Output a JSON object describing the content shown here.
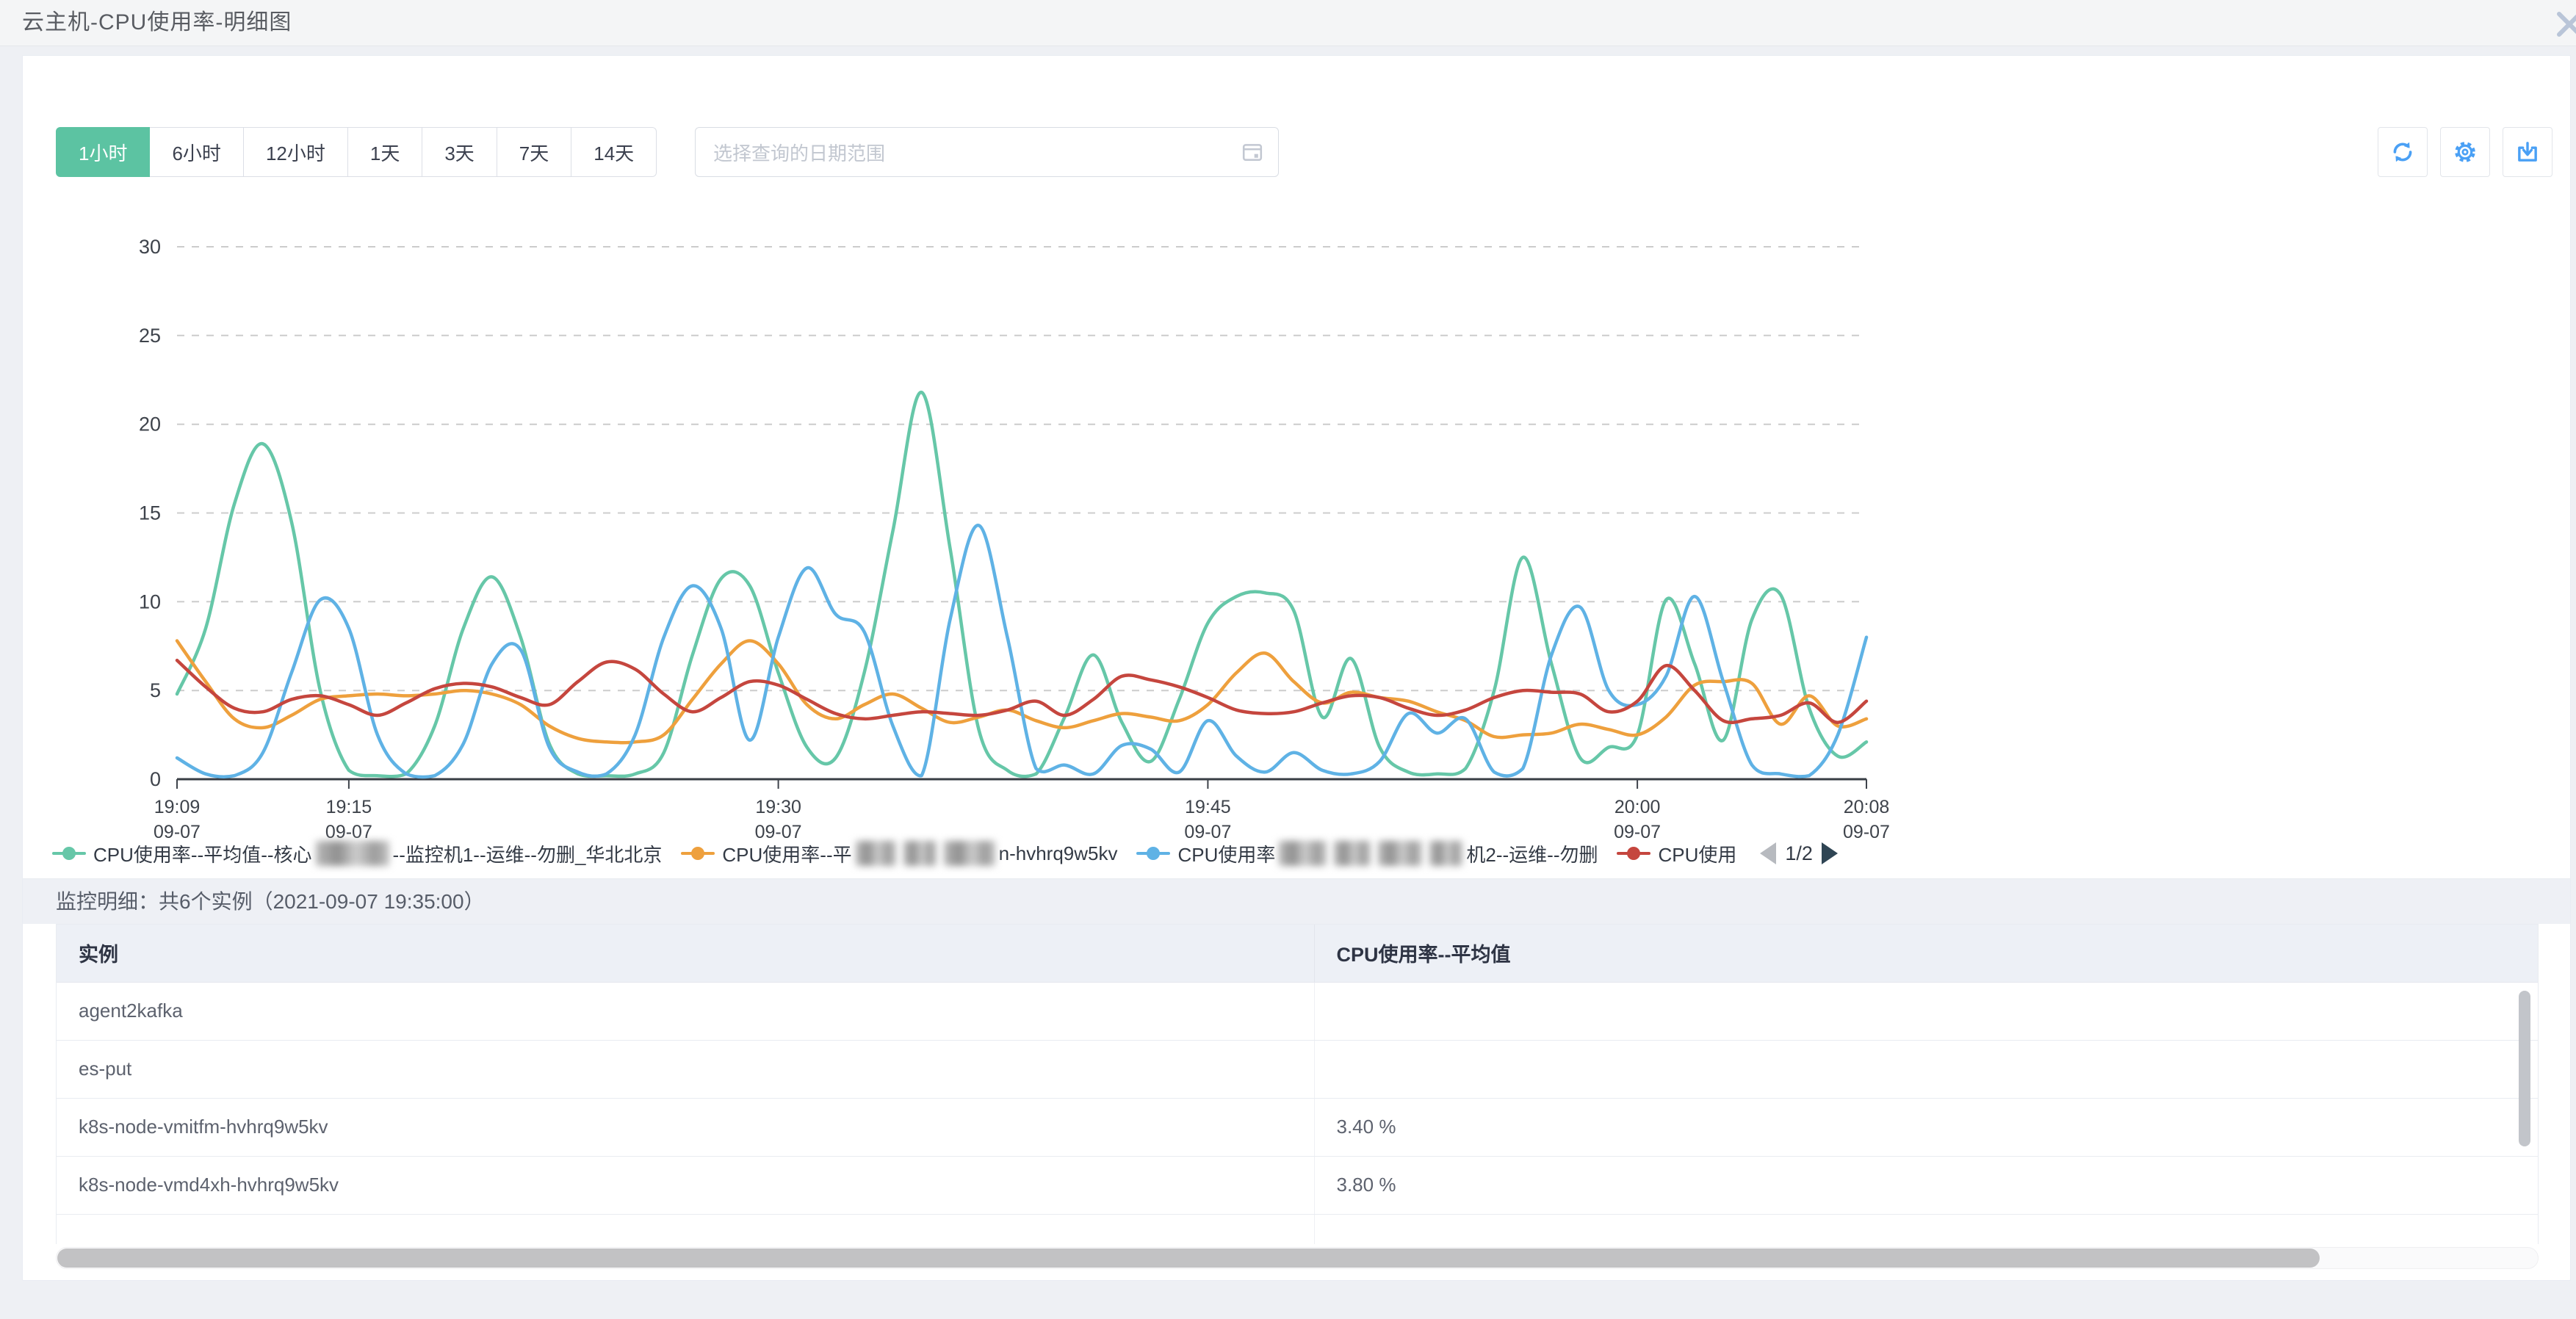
{
  "window": {
    "title": "云主机-CPU使用率-明细图"
  },
  "toolbar": {
    "time_ranges": [
      {
        "key": "1h",
        "label": "1小时",
        "active": true
      },
      {
        "key": "6h",
        "label": "6小时",
        "active": false
      },
      {
        "key": "12h",
        "label": "12小时",
        "active": false
      },
      {
        "key": "1d",
        "label": "1天",
        "active": false
      },
      {
        "key": "3d",
        "label": "3天",
        "active": false
      },
      {
        "key": "7d",
        "label": "7天",
        "active": false
      },
      {
        "key": "14d",
        "label": "14天",
        "active": false
      }
    ],
    "date_picker": {
      "placeholder": "选择查询的日期范围"
    },
    "accent_color": "#4aa0f5"
  },
  "chart_data": {
    "type": "line",
    "title": "",
    "xlabel": "",
    "ylabel": "",
    "value_unit": "%",
    "ylim": [
      0,
      30
    ],
    "y_ticks": [
      0,
      5,
      10,
      15,
      20,
      25,
      30
    ],
    "grid": "dashed-horizontal",
    "legend_position": "bottom",
    "x_start_minute": 0,
    "x_end_minute": 59,
    "x_ticks": [
      {
        "minute": 0,
        "time": "19:09",
        "date": "09-07"
      },
      {
        "minute": 6,
        "time": "19:15",
        "date": "09-07"
      },
      {
        "minute": 21,
        "time": "19:30",
        "date": "09-07"
      },
      {
        "minute": 36,
        "time": "19:45",
        "date": "09-07"
      },
      {
        "minute": 51,
        "time": "20:00",
        "date": "09-07"
      },
      {
        "minute": 59,
        "time": "20:08",
        "date": "09-07"
      }
    ],
    "series": [
      {
        "key": "core-monitor1",
        "color": "#66C7A8",
        "name_segments": [
          {
            "text": "CPU使用率--平均值--核心"
          },
          {
            "blur": 100
          },
          {
            "text": "--监控机1--运维--勿删_华北北京"
          }
        ],
        "values": [
          4.8,
          8.5,
          15.5,
          18.9,
          14.5,
          5,
          0.5,
          0.2,
          0.3,
          3,
          8.5,
          11.4,
          8,
          2,
          0.3,
          0.2,
          0.3,
          1.5,
          7,
          11.3,
          10.9,
          6,
          1.8,
          1.2,
          6,
          14,
          21.8,
          13,
          2.8,
          0.5,
          0.3,
          3.5,
          7,
          3.2,
          1,
          4.5,
          8.8,
          10.3,
          10.5,
          9.5,
          3.5,
          6.8,
          1.8,
          0.4,
          0.3,
          0.6,
          5,
          12.5,
          6.5,
          1.2,
          1.8,
          2.5,
          10.1,
          6.5,
          2.2,
          9,
          10.4,
          4,
          1.3,
          2.1
        ]
      },
      {
        "key": "node-hvhrq9w5kv",
        "color": "#EEA03D",
        "name_segments": [
          {
            "text": "CPU使用率--平"
          },
          {
            "blur": 55
          },
          {
            "blur": 45
          },
          {
            "blur": 70
          },
          {
            "text": "n-hvhrq9w5kv"
          }
        ],
        "values": [
          7.8,
          5.5,
          3.4,
          2.9,
          3.6,
          4.5,
          4.7,
          4.8,
          4.7,
          4.8,
          5,
          4.8,
          4.2,
          3,
          2.3,
          2.1,
          2.1,
          2.5,
          4.5,
          6.5,
          7.8,
          6.5,
          4.2,
          3.4,
          4.2,
          4.8,
          4,
          3.2,
          3.5,
          3.9,
          3.3,
          2.9,
          3.3,
          3.7,
          3.5,
          3.3,
          4.2,
          6,
          7.1,
          5.5,
          4.3,
          4.9,
          4.6,
          4.4,
          3.8,
          3.3,
          2.4,
          2.5,
          2.6,
          3.1,
          2.8,
          2.5,
          3.5,
          5.3,
          5.5,
          5.4,
          3.1,
          4.7,
          3,
          3.4
        ]
      },
      {
        "key": "machine2",
        "color": "#5FB2E5",
        "name_segments": [
          {
            "text": "CPU使用率"
          },
          {
            "blur": 65
          },
          {
            "blur": 50
          },
          {
            "blur": 60
          },
          {
            "blur": 45
          },
          {
            "text": "机2--运维--勿删"
          }
        ],
        "values": [
          1.2,
          0.3,
          0.2,
          1.5,
          6,
          10.1,
          8.5,
          2.5,
          0.3,
          0.2,
          2,
          6.5,
          7.3,
          1.8,
          0.4,
          0.3,
          2.5,
          8,
          10.9,
          8.5,
          2.2,
          8,
          11.9,
          9.3,
          8.3,
          3,
          0.2,
          9,
          14.3,
          8,
          0.6,
          0.8,
          0.3,
          1.9,
          1.7,
          0.4,
          3.3,
          1.3,
          0.4,
          1.5,
          0.5,
          0.3,
          1,
          3.7,
          2.6,
          3.4,
          0.4,
          0.6,
          7,
          9.7,
          5,
          4.2,
          5.8,
          10.3,
          5.5,
          0.8,
          0.3,
          0.2,
          2.5,
          8
        ]
      },
      {
        "key": "truncated",
        "color": "#C5463E",
        "name_segments": [
          {
            "text": "CPU使用"
          }
        ],
        "values": [
          6.7,
          5.2,
          4,
          3.8,
          4.5,
          4.7,
          4.2,
          3.6,
          4.3,
          5.1,
          5.4,
          5.2,
          4.6,
          4.2,
          5.5,
          6.6,
          6.2,
          4.8,
          3.8,
          4.6,
          5.5,
          5.3,
          4.5,
          3.7,
          3.4,
          3.6,
          3.8,
          3.7,
          3.6,
          3.9,
          4.4,
          3.6,
          4.5,
          5.8,
          5.6,
          5.2,
          4.6,
          3.9,
          3.7,
          3.8,
          4.3,
          4.7,
          4.6,
          4,
          3.6,
          3.9,
          4.6,
          5,
          4.9,
          4.8,
          3.8,
          4.4,
          6.4,
          5,
          3.3,
          3.4,
          3.6,
          4.3,
          3.2,
          4.4
        ]
      }
    ],
    "legend_pager": {
      "label": "1/2",
      "prev_enabled": false,
      "next_enabled": true
    }
  },
  "detail": {
    "section_title": "监控明细：共6个实例（2021-09-07 19:35:00）",
    "table": {
      "columns": [
        "实例",
        "CPU使用率--平均值"
      ],
      "rows": [
        {
          "instance": "agent2kafka",
          "value": ""
        },
        {
          "instance": "es-put",
          "value": ""
        },
        {
          "instance": "k8s-node-vmitfm-hvhrq9w5kv",
          "value": "3.40 %"
        },
        {
          "instance": "k8s-node-vmd4xh-hvhrq9w5kv",
          "value": "3.80 %"
        },
        {
          "instance": "",
          "value": ""
        }
      ]
    }
  }
}
